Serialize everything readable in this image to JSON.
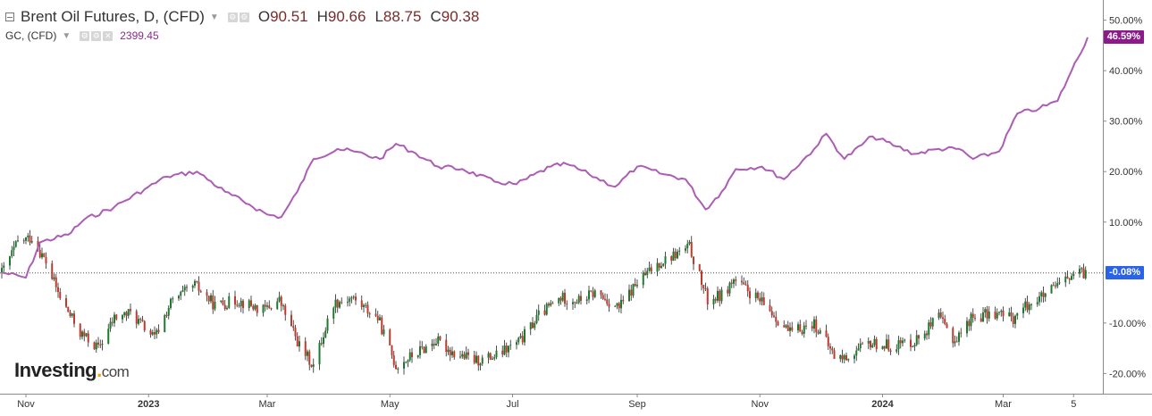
{
  "header": {
    "title": "Brent Oil Futures, D, (CFD)",
    "ohlc": [
      {
        "label": "O",
        "value": "90.51"
      },
      {
        "label": "H",
        "value": "90.66"
      },
      {
        "label": "L",
        "value": "88.75"
      },
      {
        "label": "C",
        "value": "90.38"
      }
    ]
  },
  "compare": {
    "label": "GC, (CFD)",
    "value": "2399.45"
  },
  "brand": {
    "name": "Investing",
    "suffix": "com"
  },
  "badges": {
    "gc": "46.59%",
    "brent": "-0.08%"
  },
  "colors": {
    "gc_line": "#ad5cb5",
    "gc_badge": "#8b1a8b",
    "brent_badge": "#2b63e6",
    "up_candle": "#1c7a2c",
    "down_candle": "#c0392b"
  },
  "chart_data": {
    "type": "line",
    "y_axis_unit": "percent",
    "ylim": [
      -24,
      54
    ],
    "y_ticks": [
      "50.00%",
      "40.00%",
      "30.00%",
      "20.00%",
      "10.00%",
      "-10.00%",
      "-20.00%"
    ],
    "x_ticks": [
      "Nov",
      "2023",
      "Mar",
      "May",
      "Jul",
      "Sep",
      "Nov",
      "2024",
      "Mar",
      "5"
    ],
    "x_range": [
      "2022-10-20",
      "2024-04-12"
    ],
    "grid": false,
    "series": [
      {
        "name": "GC, (CFD)",
        "style": "line",
        "points": [
          [
            "2022-10-20",
            0.0
          ],
          [
            "2022-11-01",
            -1.0
          ],
          [
            "2022-11-08",
            6.0
          ],
          [
            "2022-11-22",
            7.5
          ],
          [
            "2022-11-30",
            10.5
          ],
          [
            "2022-12-15",
            13.0
          ],
          [
            "2022-12-30",
            16.5
          ],
          [
            "2023-01-10",
            19.0
          ],
          [
            "2023-01-25",
            20.0
          ],
          [
            "2023-02-08",
            16.0
          ],
          [
            "2023-02-20",
            13.5
          ],
          [
            "2023-03-01",
            11.5
          ],
          [
            "2023-03-08",
            11.0
          ],
          [
            "2023-03-16",
            16.0
          ],
          [
            "2023-03-24",
            22.5
          ],
          [
            "2023-04-05",
            24.5
          ],
          [
            "2023-04-13",
            24.0
          ],
          [
            "2023-04-26",
            22.5
          ],
          [
            "2023-05-04",
            25.5
          ],
          [
            "2023-05-12",
            24.0
          ],
          [
            "2023-05-25",
            21.0
          ],
          [
            "2023-06-06",
            20.5
          ],
          [
            "2023-06-22",
            18.0
          ],
          [
            "2023-07-03",
            17.5
          ],
          [
            "2023-07-20",
            21.0
          ],
          [
            "2023-07-28",
            21.5
          ],
          [
            "2023-08-08",
            19.5
          ],
          [
            "2023-08-21",
            17.0
          ],
          [
            "2023-09-01",
            21.0
          ],
          [
            "2023-09-14",
            19.5
          ],
          [
            "2023-09-25",
            18.5
          ],
          [
            "2023-10-05",
            12.5
          ],
          [
            "2023-10-13",
            16.0
          ],
          [
            "2023-10-20",
            20.5
          ],
          [
            "2023-11-02",
            21.0
          ],
          [
            "2023-11-13",
            18.5
          ],
          [
            "2023-11-28",
            24.5
          ],
          [
            "2023-12-04",
            27.5
          ],
          [
            "2023-12-13",
            22.5
          ],
          [
            "2023-12-27",
            27.0
          ],
          [
            "2024-01-08",
            25.0
          ],
          [
            "2024-01-17",
            23.5
          ],
          [
            "2024-01-29",
            24.5
          ],
          [
            "2024-02-08",
            24.5
          ],
          [
            "2024-02-15",
            22.5
          ],
          [
            "2024-02-28",
            24.0
          ],
          [
            "2024-03-08",
            31.5
          ],
          [
            "2024-03-19",
            32.5
          ],
          [
            "2024-03-28",
            34.0
          ],
          [
            "2024-04-04",
            40.0
          ],
          [
            "2024-04-12",
            46.59
          ]
        ]
      },
      {
        "name": "Brent Oil Futures",
        "style": "candlestick",
        "points": [
          [
            "2022-10-20",
            0.0
          ],
          [
            "2022-10-28",
            6.0
          ],
          [
            "2022-11-04",
            7.0
          ],
          [
            "2022-11-11",
            2.0
          ],
          [
            "2022-11-18",
            -5.0
          ],
          [
            "2022-11-28",
            -12.0
          ],
          [
            "2022-12-07",
            -15.0
          ],
          [
            "2022-12-15",
            -9.0
          ],
          [
            "2022-12-23",
            -8.0
          ],
          [
            "2023-01-04",
            -13.0
          ],
          [
            "2023-01-12",
            -6.0
          ],
          [
            "2023-01-24",
            -2.5
          ],
          [
            "2023-02-03",
            -6.5
          ],
          [
            "2023-02-14",
            -5.5
          ],
          [
            "2023-02-27",
            -7.5
          ],
          [
            "2023-03-07",
            -5.5
          ],
          [
            "2023-03-17",
            -14.5
          ],
          [
            "2023-03-24",
            -18.5
          ],
          [
            "2023-04-03",
            -6.0
          ],
          [
            "2023-04-12",
            -5.0
          ],
          [
            "2023-04-25",
            -9.0
          ],
          [
            "2023-05-04",
            -18.5
          ],
          [
            "2023-05-12",
            -16.5
          ],
          [
            "2023-05-24",
            -13.5
          ],
          [
            "2023-06-02",
            -16.0
          ],
          [
            "2023-06-13",
            -17.5
          ],
          [
            "2023-06-23",
            -16.5
          ],
          [
            "2023-07-05",
            -13.5
          ],
          [
            "2023-07-14",
            -8.5
          ],
          [
            "2023-07-25",
            -5.0
          ],
          [
            "2023-08-03",
            -5.5
          ],
          [
            "2023-08-11",
            -4.0
          ],
          [
            "2023-08-23",
            -7.0
          ],
          [
            "2023-09-01",
            -2.0
          ],
          [
            "2023-09-12",
            2.0
          ],
          [
            "2023-09-27",
            5.0
          ],
          [
            "2023-10-06",
            -5.5
          ],
          [
            "2023-10-13",
            -4.5
          ],
          [
            "2023-10-19",
            -1.5
          ],
          [
            "2023-10-27",
            -4.0
          ],
          [
            "2023-11-06",
            -7.5
          ],
          [
            "2023-11-16",
            -12.0
          ],
          [
            "2023-11-28",
            -10.0
          ],
          [
            "2023-12-08",
            -16.5
          ],
          [
            "2023-12-13",
            -17.0
          ],
          [
            "2023-12-26",
            -14.0
          ],
          [
            "2024-01-05",
            -14.5
          ],
          [
            "2024-01-17",
            -13.5
          ],
          [
            "2024-01-29",
            -9.0
          ],
          [
            "2024-02-06",
            -13.5
          ],
          [
            "2024-02-14",
            -9.0
          ],
          [
            "2024-02-26",
            -8.0
          ],
          [
            "2024-03-06",
            -9.0
          ],
          [
            "2024-03-14",
            -6.0
          ],
          [
            "2024-03-22",
            -4.5
          ],
          [
            "2024-03-29",
            -2.5
          ],
          [
            "2024-04-05",
            -0.5
          ],
          [
            "2024-04-12",
            -0.08
          ]
        ]
      }
    ]
  }
}
